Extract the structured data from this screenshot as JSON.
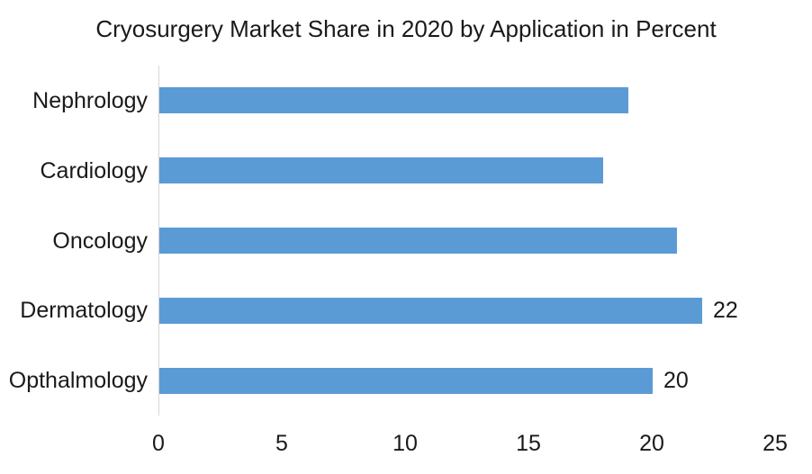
{
  "page": {
    "background_color": "#ffffff"
  },
  "chart_data": {
    "type": "bar",
    "orientation": "horizontal",
    "title": "Cryosurgery Market Share in 2020 by Application in Percent",
    "categories": [
      "Nephrology",
      "Cardiology",
      "Oncology",
      "Dermatology",
      "Opthalmology"
    ],
    "values": [
      19,
      18,
      21,
      22,
      20
    ],
    "point_labels": [
      "",
      "",
      "",
      "22",
      "20"
    ],
    "xlabel": "",
    "ylabel": "",
    "xlim": [
      0,
      25
    ],
    "xticks": [
      0,
      5,
      10,
      15,
      20,
      25
    ],
    "grid": false,
    "legend": false,
    "bar_color": "#5B9BD5",
    "axis_line_color": "#D6D6D6",
    "text_color": "#1A1A1A"
  }
}
